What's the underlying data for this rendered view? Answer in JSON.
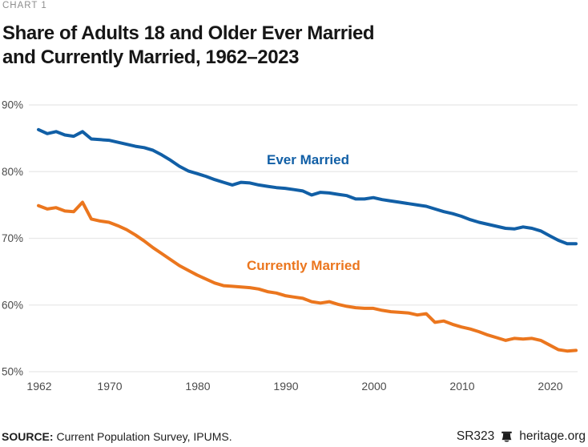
{
  "kicker": "CHART 1",
  "title_lines": [
    "Share of Adults 18 and Older Ever Married",
    "and Currently Married, 1962–2023"
  ],
  "source": {
    "label": "SOURCE:",
    "text": "Current Population Survey, IPUMS."
  },
  "footer_right": {
    "report_id": "SR323",
    "logo_icon": "liberty-bell-icon",
    "site": "heritage.org"
  },
  "colors": {
    "blue": "#115FA6",
    "orange": "#EB761E",
    "grid": "#E8E8E8",
    "axis_text": "#4B4B4B",
    "title": "#161616",
    "kicker": "#8D8D8D",
    "footer_text": "#1E1E1E"
  },
  "chart_data": {
    "type": "line",
    "title": "Share of Adults 18 and Older Ever Married and Currently Married, 1962–2023",
    "xlabel": "",
    "ylabel": "",
    "ylim": [
      50,
      90
    ],
    "yticks": [
      90,
      80,
      70,
      60,
      50
    ],
    "ytick_suffix": "%",
    "xticks": [
      1962,
      1970,
      1980,
      1990,
      2000,
      2010,
      2020
    ],
    "grid": "horizontal",
    "legend": "inline-labels",
    "x": [
      1962,
      1963,
      1964,
      1965,
      1966,
      1967,
      1968,
      1969,
      1970,
      1971,
      1972,
      1973,
      1974,
      1975,
      1976,
      1977,
      1978,
      1979,
      1980,
      1981,
      1982,
      1983,
      1984,
      1985,
      1986,
      1987,
      1988,
      1989,
      1990,
      1991,
      1992,
      1993,
      1994,
      1995,
      1996,
      1997,
      1998,
      1999,
      2000,
      2001,
      2002,
      2003,
      2004,
      2005,
      2006,
      2007,
      2008,
      2009,
      2010,
      2011,
      2012,
      2013,
      2014,
      2015,
      2016,
      2017,
      2018,
      2019,
      2020,
      2021,
      2022,
      2023
    ],
    "series": [
      {
        "name": "Ever Married",
        "color": "#115FA6",
        "values": [
          86.3,
          85.7,
          86.0,
          85.5,
          85.3,
          86.0,
          84.9,
          84.8,
          84.7,
          84.4,
          84.1,
          83.8,
          83.6,
          83.2,
          82.5,
          81.7,
          80.8,
          80.1,
          79.7,
          79.3,
          78.8,
          78.4,
          78.0,
          78.4,
          78.3,
          78.0,
          77.8,
          77.6,
          77.5,
          77.3,
          77.1,
          76.5,
          76.9,
          76.8,
          76.6,
          76.4,
          75.9,
          75.9,
          76.1,
          75.8,
          75.6,
          75.4,
          75.2,
          75.0,
          74.8,
          74.4,
          74.0,
          73.7,
          73.3,
          72.8,
          72.4,
          72.1,
          71.8,
          71.5,
          71.4,
          71.7,
          71.5,
          71.1,
          70.4,
          69.7,
          69.2,
          69.2
        ]
      },
      {
        "name": "Currently Married",
        "color": "#EB761E",
        "values": [
          74.9,
          74.4,
          74.6,
          74.1,
          74.0,
          75.4,
          72.9,
          72.6,
          72.4,
          71.9,
          71.3,
          70.5,
          69.6,
          68.6,
          67.7,
          66.8,
          65.9,
          65.2,
          64.5,
          63.9,
          63.3,
          62.9,
          62.8,
          62.7,
          62.6,
          62.4,
          62.0,
          61.8,
          61.4,
          61.2,
          61.0,
          60.5,
          60.3,
          60.5,
          60.1,
          59.8,
          59.6,
          59.5,
          59.5,
          59.2,
          59.0,
          58.9,
          58.8,
          58.5,
          58.7,
          57.4,
          57.6,
          57.1,
          56.7,
          56.4,
          56.0,
          55.5,
          55.1,
          54.7,
          55.0,
          54.9,
          55.0,
          54.7,
          54.0,
          53.3,
          53.1,
          53.2
        ]
      }
    ]
  }
}
